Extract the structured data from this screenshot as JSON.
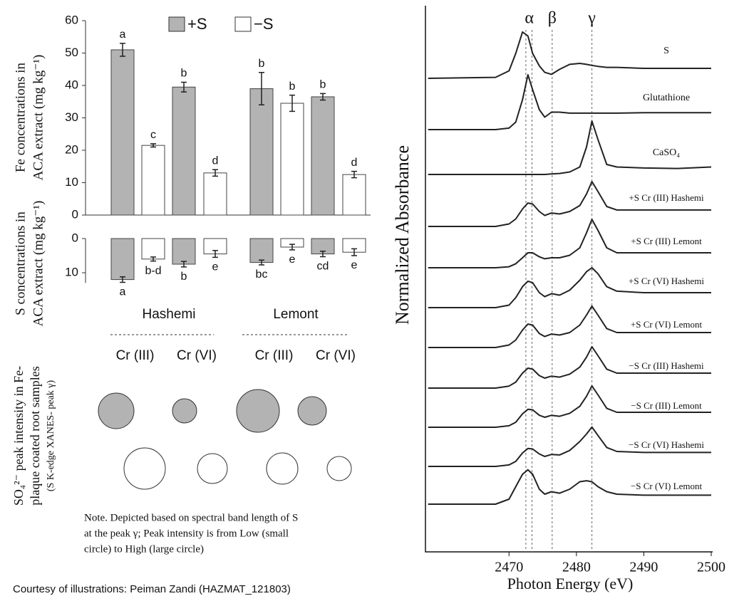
{
  "credit": "Courtesy of illustrations: Peiman Zandi (HAZMAT_121803)",
  "chart_data": [
    {
      "type": "bar",
      "y_label": [
        "Fe concentrations in",
        "ACA extract (mg kg⁻¹)"
      ],
      "series": [
        {
          "name": "+S",
          "color": "#b3b3b3",
          "values": [
            51,
            39.5,
            39,
            36.5
          ],
          "errors": [
            2,
            1.5,
            5,
            1
          ],
          "letters": [
            "a",
            "b",
            "b",
            "b"
          ]
        },
        {
          "name": "−S",
          "color": "#ffffff",
          "values": [
            21.5,
            13,
            34.5,
            12.5
          ],
          "errors": [
            0.5,
            1,
            2.5,
            1
          ],
          "letters": [
            "c",
            "d",
            "b",
            "d"
          ]
        }
      ],
      "ylim": [
        0,
        60
      ],
      "yticks": [
        0,
        10,
        20,
        30,
        40,
        50,
        60
      ]
    },
    {
      "type": "bar",
      "inverted": true,
      "y_label": [
        "S concentrations in",
        "ACA extract (mg kg⁻¹)"
      ],
      "groups": [
        "Hashemi",
        "Lemont"
      ],
      "categories": [
        "Cr (III)",
        "Cr (VI)",
        "Cr (III)",
        "Cr (VI)"
      ],
      "series": [
        {
          "name": "+S",
          "color": "#b3b3b3",
          "values": [
            12,
            7.5,
            7,
            4.5
          ],
          "errors": [
            0.8,
            0.8,
            0.7,
            0.8
          ],
          "letters": [
            "a",
            "b",
            "bc",
            "cd"
          ]
        },
        {
          "name": "−S",
          "color": "#ffffff",
          "values": [
            6,
            4.5,
            2.5,
            4
          ],
          "errors": [
            0.6,
            1,
            0.8,
            1
          ],
          "letters": [
            "b-d",
            "e",
            "e",
            "e"
          ]
        }
      ],
      "ylim": [
        0,
        13
      ],
      "yticks": [
        0,
        10
      ]
    },
    {
      "type": "bubble",
      "y_label": [
        "SO₄²⁻ peak intensity in Fe-",
        "plaque coated root samples",
        "(S K-edge XANES- peak γ)"
      ],
      "series": [
        {
          "name": "+S",
          "color": "#b3b3b3",
          "sizes": [
            25,
            17,
            30,
            20
          ]
        },
        {
          "name": "−S",
          "color": "#ffffff",
          "sizes": [
            29,
            21,
            22,
            17
          ]
        }
      ],
      "note": [
        "Note. Depicted based on spectral band length of S",
        "at the peak γ; Peak intensity is from Low (small",
        "circle) to High (large circle)"
      ]
    },
    {
      "type": "line",
      "x_label": "Photon Energy (eV)",
      "y_label": "Normalized Absorbance",
      "xlim": [
        2457.6,
        2500
      ],
      "xticks": [
        2470,
        2480,
        2490,
        2500
      ],
      "reference_lines": [
        2472.5,
        2473.4,
        2476.4,
        2482.3
      ],
      "peak_labels": [
        {
          "label": "α",
          "x": 2473
        },
        {
          "label": "β",
          "x": 2476.4
        },
        {
          "label": "γ",
          "x": 2482.3
        }
      ],
      "x": [
        2458,
        2468,
        2470,
        2471,
        2472,
        2472.8,
        2473.5,
        2474.5,
        2475.3,
        2476.3,
        2477.5,
        2479,
        2480.5,
        2481.5,
        2482.3,
        2483.2,
        2484.5,
        2486,
        2490,
        2495,
        2500
      ],
      "series": [
        {
          "name": "S",
          "color": "#222222",
          "values": [
            0,
            0.02,
            0.15,
            0.5,
            0.93,
            0.85,
            0.5,
            0.25,
            0.12,
            0.08,
            0.18,
            0.28,
            0.3,
            0.28,
            0.26,
            0.24,
            0.22,
            0.22,
            0.2,
            0.2,
            0.2
          ]
        },
        {
          "name": "Glutathione",
          "color": "#222222",
          "values": [
            0,
            0,
            0.03,
            0.15,
            0.6,
            1.1,
            0.8,
            0.4,
            0.25,
            0.35,
            0.35,
            0.33,
            0.33,
            0.33,
            0.33,
            0.33,
            0.33,
            0.33,
            0.34,
            0.34,
            0.34
          ]
        },
        {
          "name": "CaSO₄",
          "color": "#222222",
          "values": [
            0,
            0,
            0,
            0,
            0,
            0,
            0,
            0,
            0,
            0.01,
            0.02,
            0.05,
            0.15,
            0.55,
            1.07,
            0.7,
            0.2,
            0.15,
            0.13,
            0.12,
            0.15
          ]
        },
        {
          "name": "+S Cr (III) Hashemi",
          "color": "#222222",
          "values": [
            0,
            0,
            0.05,
            0.15,
            0.35,
            0.47,
            0.45,
            0.3,
            0.22,
            0.27,
            0.25,
            0.3,
            0.42,
            0.65,
            0.9,
            0.7,
            0.4,
            0.33,
            0.33,
            0.33,
            0.33
          ]
        },
        {
          "name": "+S Cr (III) Lemont",
          "color": "#222222",
          "values": [
            0,
            0,
            0.02,
            0.08,
            0.2,
            0.3,
            0.3,
            0.22,
            0.18,
            0.2,
            0.2,
            0.25,
            0.4,
            0.7,
            0.97,
            0.75,
            0.4,
            0.3,
            0.3,
            0.3,
            0.3
          ]
        },
        {
          "name": "+S Cr (VI) Hashemi",
          "color": "#222222",
          "values": [
            0,
            0,
            0.05,
            0.2,
            0.42,
            0.53,
            0.5,
            0.3,
            0.22,
            0.28,
            0.25,
            0.35,
            0.55,
            0.72,
            0.8,
            0.68,
            0.42,
            0.33,
            0.3,
            0.3,
            0.3
          ]
        },
        {
          "name": "+S Cr (VI) Lemont",
          "color": "#222222",
          "values": [
            0,
            0,
            0.05,
            0.15,
            0.35,
            0.47,
            0.45,
            0.28,
            0.22,
            0.27,
            0.25,
            0.3,
            0.45,
            0.65,
            0.83,
            0.65,
            0.38,
            0.3,
            0.3,
            0.3,
            0.3
          ]
        },
        {
          "name": "−S Cr (III) Hashemi",
          "color": "#222222",
          "values": [
            0,
            0,
            0.04,
            0.12,
            0.3,
            0.4,
            0.38,
            0.25,
            0.2,
            0.24,
            0.22,
            0.28,
            0.42,
            0.62,
            0.83,
            0.65,
            0.38,
            0.3,
            0.3,
            0.3,
            0.3
          ]
        },
        {
          "name": "−S Cr (III) Lemont",
          "color": "#222222",
          "values": [
            0,
            0,
            0.03,
            0.1,
            0.27,
            0.36,
            0.35,
            0.24,
            0.2,
            0.24,
            0.22,
            0.28,
            0.42,
            0.62,
            0.83,
            0.65,
            0.38,
            0.3,
            0.3,
            0.3,
            0.3
          ]
        },
        {
          "name": "−S Cr (VI) Hashemi",
          "color": "#222222",
          "values": [
            0,
            0,
            0.03,
            0.1,
            0.27,
            0.36,
            0.35,
            0.25,
            0.2,
            0.24,
            0.23,
            0.32,
            0.5,
            0.65,
            0.79,
            0.62,
            0.38,
            0.3,
            0.28,
            0.28,
            0.28
          ]
        },
        {
          "name": "−S Cr (VI) Lemont",
          "color": "#222222",
          "values": [
            0,
            0,
            0.1,
            0.35,
            0.6,
            0.69,
            0.6,
            0.3,
            0.2,
            0.25,
            0.22,
            0.3,
            0.45,
            0.47,
            0.45,
            0.35,
            0.25,
            0.2,
            0.18,
            0.18,
            0.18
          ]
        }
      ]
    }
  ]
}
